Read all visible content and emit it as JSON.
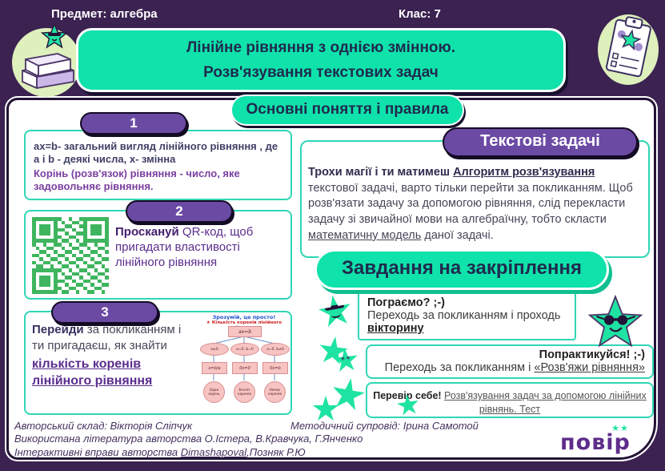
{
  "header": {
    "subject_label": "Предмет: алгебра",
    "class_label": "Клас: 7",
    "title_line1": "Лінійне рівняння з однією змінною.",
    "title_line2": "Розв'язування текстових задач",
    "section_pill": "Основні поняття і правила"
  },
  "left": {
    "item1": {
      "number": "1",
      "line1": "ax=b- загальний вигляд лінійного рівняння , де a і b - деякі числа, x- змінна",
      "line2": "Корінь (розв'язок) рівняння - число, яке задовольняє рівняння."
    },
    "item2": {
      "number": "2",
      "action": "Проскануй",
      "rest": " QR-код, щоб пригадати властивості лінійного рівняння"
    },
    "item3": {
      "number": "3",
      "action": "Перейди",
      "mid": " за покликанням і ти пригадаєш, як знайти ",
      "link": "кількість коренів  лінійного рівняння",
      "flowchart": {
        "title": "Зрозумій, це просто!",
        "subtitle": "★ Кількість коренів лінійного рівняння",
        "root": "ax=b",
        "branches": [
          {
            "condition": "a≠0",
            "equation": "x=b/a",
            "result": "Один корінь"
          },
          {
            "condition": "a=0, b=0",
            "equation": "0x=0",
            "result": "Безліч коренів"
          },
          {
            "condition": "a=0, b≠0",
            "equation": "0x=b",
            "result": "Немає коренів"
          }
        ]
      }
    }
  },
  "right": {
    "header_pill": "Текстові задачі",
    "intro_bold": "Трохи магії і ти матимеш ",
    "intro_link1": "Алгоритм розв'язування",
    "intro_rest": " текстової задачі, варто тільки перейти за покликанням. Щоб розв'язати задачу за допомогою рівняння, слід перекласти задачу зі звичайної мови на алгебраїчну, тобто скласти ",
    "intro_link2": "математичну модель",
    "intro_end": " даної задачі.",
    "tasks_banner": "Завдання на закріплення",
    "play": {
      "title": "Пограємо? ;-)",
      "line": "Переходь за покликанням і  проходь ",
      "link": "вікторину"
    },
    "practice": {
      "title": "Попрактикуйся! ;-)",
      "line": "Переходь за покликанням і  ",
      "link": "«Розв'яжи рівняння»"
    },
    "check": {
      "bold": "Перевір себе! ",
      "link": "Розв'язування задач за допомогою лінійних рівнянь. Тест"
    }
  },
  "footer": {
    "credits1a": "Авторський склад: Вікторія Сліпчук",
    "credits1b": "Методичний супровід: Ірина Самотой",
    "credits2": "Використана література авторства О.Істера, В.Кравчука, Г.Янченко",
    "credits3_pre": "Інтерактивні вправи авторства ",
    "credits3_link": "Dimashapoval",
    "credits3_end": ",Позняк Р.Ю",
    "logo": "повір",
    "logo_stars": "★★"
  },
  "colors": {
    "background": "#3b2251",
    "teal": "#10e2ab",
    "purple_pill": "#6b4aa4",
    "box_border": "#2fd7b5",
    "qr_green": "#3eb55e"
  }
}
